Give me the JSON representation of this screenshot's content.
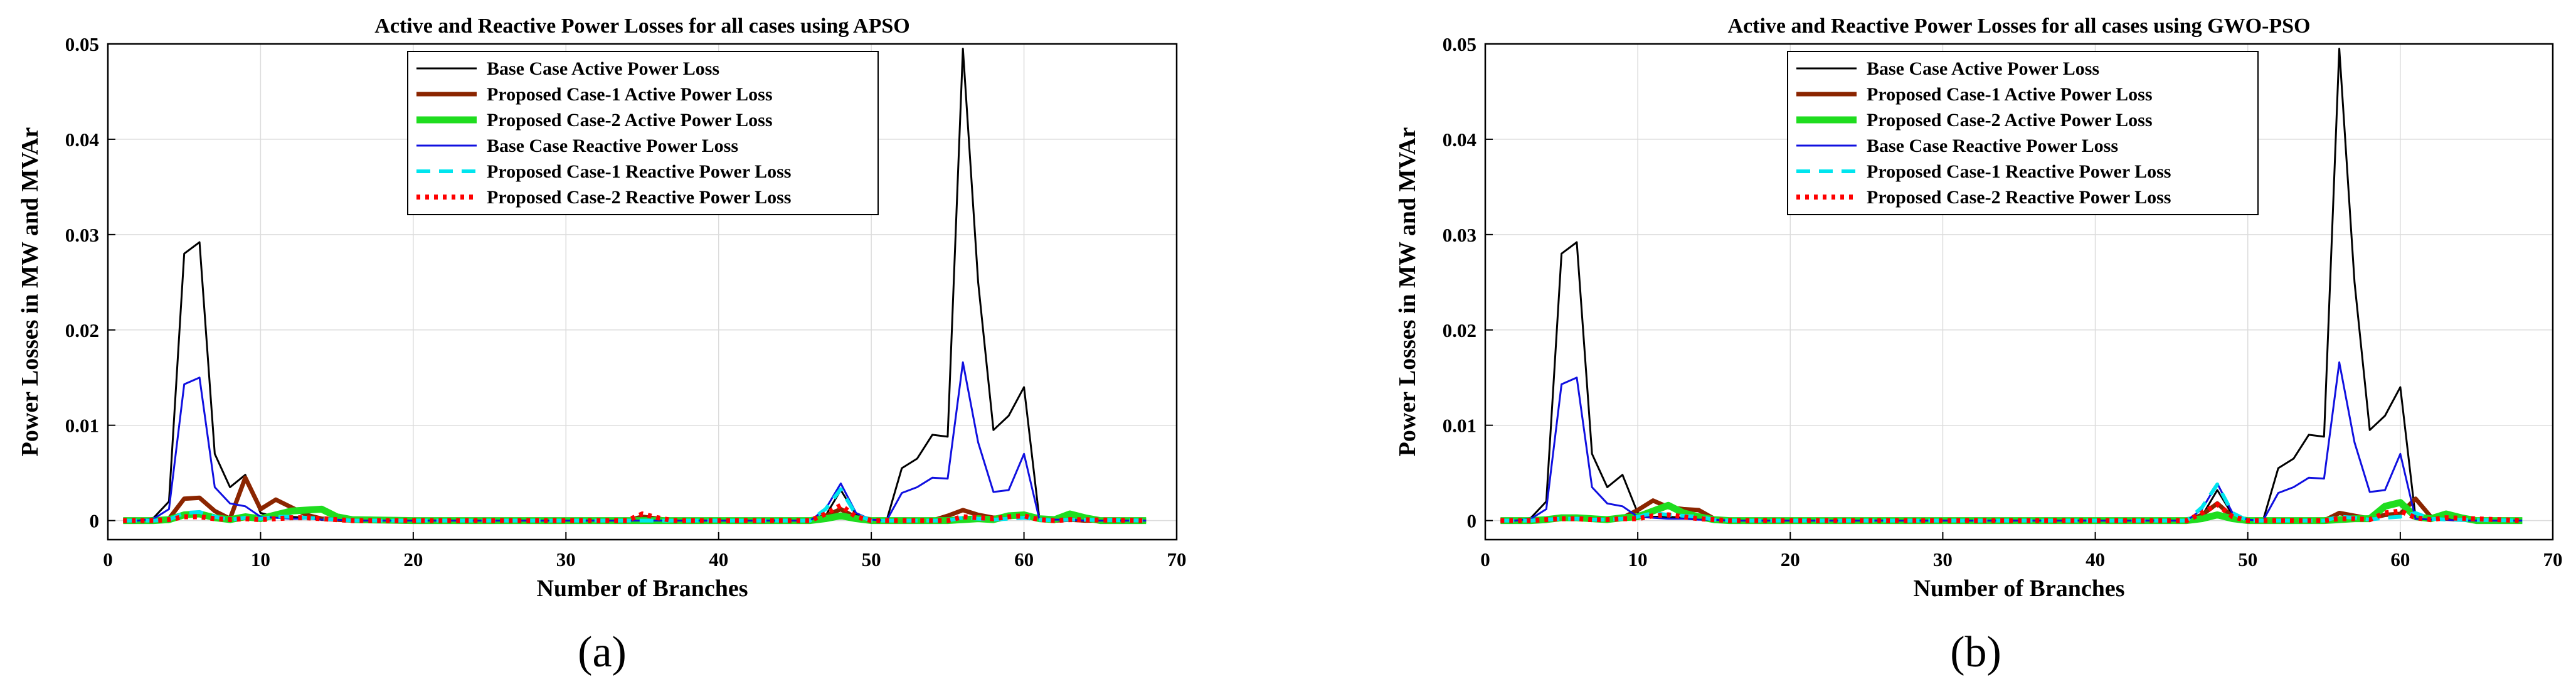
{
  "chart_data": [
    {
      "type": "line",
      "panel_label": "(a)",
      "title": "Active and Reactive Power Losses for all cases using APSO",
      "xlabel": "Number of Branches",
      "ylabel": "Power Losses in MW and MVAr",
      "xlim": [
        0,
        70
      ],
      "ylim": [
        -0.002,
        0.05
      ],
      "xticks": [
        "0",
        "10",
        "20",
        "30",
        "40",
        "50",
        "60",
        "70"
      ],
      "yticks": [
        "0",
        "0.01",
        "0.02",
        "0.03",
        "0.04",
        "0.05"
      ],
      "grid": true,
      "legend_position": "top-center",
      "series": [
        {
          "name": "Base Case Active Power Loss",
          "color": "#000000",
          "style": "solid",
          "x": [
            1,
            2,
            3,
            4,
            5,
            6,
            7,
            8,
            9,
            10,
            11,
            12,
            13,
            14,
            15,
            16,
            17,
            20,
            30,
            40,
            45,
            46,
            47,
            48,
            49,
            50,
            51,
            52,
            53,
            54,
            55,
            56,
            57,
            58,
            59,
            60,
            61,
            62,
            63,
            64,
            65,
            66,
            67,
            68
          ],
          "y": [
            0,
            0,
            0.0003,
            0.002,
            0.028,
            0.0292,
            0.007,
            0.0035,
            0.0048,
            0.0008,
            0.0004,
            0.0004,
            0.0003,
            0.0002,
            0.0001,
            0.0001,
            0,
            0,
            0,
            0,
            0,
            0,
            0.0005,
            0.0032,
            0.0006,
            0.0001,
            0,
            0.0055,
            0.0065,
            0.009,
            0.0088,
            0.0495,
            0.025,
            0.0095,
            0.011,
            0.014,
            0.0003,
            0.0002,
            0.0001,
            0.0001,
            0,
            0,
            0,
            0
          ]
        },
        {
          "name": "Proposed Case-1 Active Power Loss",
          "color": "#8b2500",
          "style": "solid",
          "x": [
            1,
            2,
            3,
            4,
            5,
            6,
            7,
            8,
            9,
            10,
            11,
            12,
            13,
            14,
            15,
            16,
            20,
            30,
            34,
            35,
            36,
            37,
            40,
            46,
            47,
            48,
            49,
            50,
            54,
            55,
            56,
            57,
            58,
            59,
            60,
            61,
            62,
            63,
            64,
            68
          ],
          "y": [
            0,
            0,
            0,
            0.0002,
            0.0023,
            0.0024,
            0.001,
            0.0002,
            0.0045,
            0.0012,
            0.0022,
            0.0014,
            0.0006,
            0.0002,
            0.0001,
            0,
            0,
            0,
            0,
            0.0004,
            0.0002,
            0,
            0,
            0,
            0.0005,
            0.0012,
            0.0003,
            0,
            0,
            0.0005,
            0.0011,
            0.0006,
            0.0003,
            0.0004,
            0.0006,
            0.0002,
            0,
            0.0001,
            0,
            0
          ]
        },
        {
          "name": "Proposed Case-2 Active Power Loss",
          "color": "#1fdd1f",
          "style": "solid",
          "x": [
            1,
            2,
            3,
            4,
            5,
            6,
            7,
            8,
            9,
            10,
            11,
            12,
            13,
            14,
            15,
            16,
            20,
            30,
            40,
            46,
            47,
            48,
            49,
            50,
            55,
            56,
            57,
            58,
            59,
            60,
            61,
            62,
            63,
            64,
            65,
            68
          ],
          "y": [
            0,
            0,
            0,
            0.0001,
            0.0006,
            0.0007,
            0.0003,
            0.0001,
            0.0004,
            0.0002,
            0.0006,
            0.001,
            0.0011,
            0.0012,
            0.0004,
            0.0001,
            0,
            0,
            0,
            0,
            0.0002,
            0.0005,
            0.0002,
            0,
            0,
            0.0001,
            0.0002,
            0.0001,
            0.0005,
            0.0006,
            0.0002,
            0.0001,
            0.0007,
            0.0003,
            0,
            0
          ]
        },
        {
          "name": "Base Case Reactive Power Loss",
          "color": "#1010e0",
          "style": "solid",
          "x": [
            1,
            2,
            3,
            4,
            5,
            6,
            7,
            8,
            9,
            10,
            11,
            12,
            13,
            14,
            15,
            16,
            20,
            30,
            40,
            45,
            46,
            47,
            48,
            49,
            50,
            51,
            52,
            53,
            54,
            55,
            56,
            57,
            58,
            59,
            60,
            61,
            62,
            63,
            64,
            65,
            68
          ],
          "y": [
            0,
            0,
            0.0002,
            0.0012,
            0.0143,
            0.015,
            0.0035,
            0.0018,
            0.0015,
            0.0004,
            0.0003,
            0.0002,
            0.0002,
            0.0001,
            0.0001,
            0,
            0,
            0,
            0,
            0,
            0,
            0.0012,
            0.0039,
            0.0008,
            0.0001,
            0,
            0.0029,
            0.0035,
            0.0045,
            0.0044,
            0.0166,
            0.0082,
            0.003,
            0.0032,
            0.007,
            0.0002,
            0.0001,
            0.0001,
            0,
            0,
            0
          ]
        },
        {
          "name": "Proposed Case-1 Reactive Power Loss",
          "color": "#00e5ee",
          "style": "dash",
          "x": [
            1,
            2,
            3,
            4,
            5,
            6,
            7,
            8,
            9,
            10,
            11,
            12,
            13,
            14,
            15,
            16,
            20,
            30,
            40,
            46,
            47,
            48,
            49,
            50,
            55,
            56,
            57,
            58,
            59,
            60,
            61,
            62,
            63,
            68
          ],
          "y": [
            0,
            0,
            0,
            0.0001,
            0.0008,
            0.0009,
            0.0004,
            0.0001,
            0.0003,
            0.0002,
            0.0004,
            0.0004,
            0.0003,
            0.0002,
            0.0001,
            0,
            0,
            0,
            0,
            0,
            0.0012,
            0.0033,
            0.0006,
            0,
            0,
            0.0003,
            0.0002,
            0.0001,
            0.0002,
            0.0003,
            0.0001,
            0,
            0.0001,
            0
          ]
        },
        {
          "name": "Proposed Case-2 Reactive Power Loss",
          "color": "#ff0000",
          "style": "dot",
          "x": [
            1,
            2,
            3,
            4,
            5,
            6,
            7,
            8,
            9,
            10,
            11,
            12,
            13,
            14,
            15,
            16,
            20,
            30,
            34,
            35,
            36,
            37,
            40,
            46,
            47,
            48,
            49,
            50,
            55,
            56,
            57,
            58,
            59,
            60,
            61,
            62,
            63,
            68
          ],
          "y": [
            0,
            0,
            0,
            0.0001,
            0.0004,
            0.0004,
            0.0002,
            0.0001,
            0.0002,
            0.0001,
            0.0002,
            0.0003,
            0.0003,
            0.0002,
            0.0001,
            0,
            0,
            0,
            0,
            0.0007,
            0.0003,
            0,
            0,
            0,
            0.0007,
            0.0016,
            0.0004,
            0,
            0,
            0.0004,
            0.0003,
            0.0002,
            0.0004,
            0.0005,
            0.0001,
            0,
            0.0001,
            0
          ]
        }
      ]
    },
    {
      "type": "line",
      "panel_label": "(b)",
      "title": "Active and Reactive Power Losses for all cases using GWO-PSO",
      "xlabel": "Number of Branches",
      "ylabel": "Power Losses in MW and MVAr",
      "xlim": [
        0,
        70
      ],
      "ylim": [
        -0.002,
        0.05
      ],
      "xticks": [
        "0",
        "10",
        "20",
        "30",
        "40",
        "50",
        "60",
        "70"
      ],
      "yticks": [
        "0",
        "0.01",
        "0.02",
        "0.03",
        "0.04",
        "0.05"
      ],
      "grid": true,
      "legend_position": "top-center",
      "series": [
        {
          "name": "Base Case Active Power Loss",
          "color": "#000000",
          "style": "solid",
          "x": [
            1,
            2,
            3,
            4,
            5,
            6,
            7,
            8,
            9,
            10,
            11,
            12,
            13,
            14,
            15,
            16,
            17,
            20,
            30,
            40,
            45,
            46,
            47,
            48,
            49,
            50,
            51,
            52,
            53,
            54,
            55,
            56,
            57,
            58,
            59,
            60,
            61,
            62,
            63,
            64,
            65,
            66,
            67,
            68
          ],
          "y": [
            0,
            0,
            0.0003,
            0.002,
            0.028,
            0.0292,
            0.007,
            0.0035,
            0.0048,
            0.0008,
            0.0004,
            0.0004,
            0.0003,
            0.0002,
            0.0001,
            0.0001,
            0,
            0,
            0,
            0,
            0,
            0,
            0.0005,
            0.0032,
            0.0006,
            0.0001,
            0,
            0.0055,
            0.0065,
            0.009,
            0.0088,
            0.0495,
            0.025,
            0.0095,
            0.011,
            0.014,
            0.0003,
            0.0002,
            0.0001,
            0.0001,
            0,
            0,
            0,
            0
          ]
        },
        {
          "name": "Proposed Case-1 Active Power Loss",
          "color": "#8b2500",
          "style": "solid",
          "x": [
            1,
            2,
            3,
            4,
            5,
            6,
            7,
            8,
            9,
            10,
            11,
            12,
            13,
            14,
            15,
            16,
            20,
            30,
            40,
            46,
            47,
            48,
            49,
            50,
            55,
            56,
            57,
            58,
            59,
            60,
            61,
            62,
            63,
            64,
            68
          ],
          "y": [
            0,
            0,
            0,
            0.0001,
            0.0003,
            0.0004,
            0.0002,
            0.0002,
            0.0003,
            0.0011,
            0.0021,
            0.0014,
            0.0012,
            0.0011,
            0.0002,
            0,
            0,
            0,
            0,
            0,
            0.0006,
            0.0018,
            0.0004,
            0,
            0,
            0.0008,
            0.0005,
            0.0002,
            0.0006,
            0.0007,
            0.0023,
            0.0004,
            0.0002,
            0.0001,
            0
          ]
        },
        {
          "name": "Proposed Case-2 Active Power Loss",
          "color": "#1fdd1f",
          "style": "solid",
          "x": [
            1,
            2,
            3,
            4,
            5,
            6,
            7,
            8,
            9,
            10,
            11,
            12,
            13,
            14,
            15,
            16,
            20,
            30,
            40,
            46,
            47,
            48,
            49,
            50,
            55,
            56,
            57,
            58,
            59,
            60,
            61,
            62,
            63,
            64,
            65,
            68
          ],
          "y": [
            0,
            0,
            0,
            0.0001,
            0.0003,
            0.0003,
            0.0002,
            0.0001,
            0.0003,
            0.0004,
            0.001,
            0.0016,
            0.0008,
            0.0004,
            0.0001,
            0,
            0,
            0,
            0,
            0,
            0.0002,
            0.0006,
            0.0002,
            0,
            0,
            0.0001,
            0.0002,
            0.0002,
            0.0015,
            0.0019,
            0.0004,
            0.0002,
            0.0007,
            0.0003,
            0,
            0
          ]
        },
        {
          "name": "Base Case Reactive Power Loss",
          "color": "#1010e0",
          "style": "solid",
          "x": [
            1,
            2,
            3,
            4,
            5,
            6,
            7,
            8,
            9,
            10,
            11,
            12,
            13,
            14,
            15,
            16,
            20,
            30,
            40,
            45,
            46,
            47,
            48,
            49,
            50,
            51,
            52,
            53,
            54,
            55,
            56,
            57,
            58,
            59,
            60,
            61,
            62,
            63,
            64,
            65,
            68
          ],
          "y": [
            0,
            0,
            0.0002,
            0.0012,
            0.0143,
            0.015,
            0.0035,
            0.0018,
            0.0015,
            0.0004,
            0.0003,
            0.0002,
            0.0002,
            0.0001,
            0.0001,
            0,
            0,
            0,
            0,
            0,
            0,
            0.0012,
            0.0039,
            0.0008,
            0.0001,
            0,
            0.0029,
            0.0035,
            0.0045,
            0.0044,
            0.0166,
            0.0082,
            0.003,
            0.0032,
            0.007,
            0.0002,
            0.0001,
            0.0001,
            0,
            0,
            0
          ]
        },
        {
          "name": "Proposed Case-1 Reactive Power Loss",
          "color": "#00e5ee",
          "style": "dash",
          "x": [
            1,
            2,
            3,
            4,
            5,
            6,
            7,
            8,
            9,
            10,
            11,
            12,
            13,
            14,
            15,
            16,
            20,
            30,
            40,
            46,
            47,
            48,
            49,
            50,
            55,
            56,
            57,
            58,
            59,
            60,
            61,
            62,
            63,
            68
          ],
          "y": [
            0,
            0,
            0,
            0.0001,
            0.0002,
            0.0002,
            0.0001,
            0.0001,
            0.0002,
            0.0004,
            0.0008,
            0.0006,
            0.0005,
            0.0004,
            0.0001,
            0,
            0,
            0,
            0,
            0,
            0.0014,
            0.0038,
            0.0008,
            0,
            0,
            0.0004,
            0.0003,
            0.0001,
            0.0003,
            0.0004,
            0.0008,
            0.0002,
            0.0001,
            0
          ]
        },
        {
          "name": "Proposed Case-2 Reactive Power Loss",
          "color": "#ff0000",
          "style": "dot",
          "x": [
            1,
            2,
            3,
            4,
            5,
            6,
            7,
            8,
            9,
            10,
            11,
            12,
            13,
            14,
            15,
            16,
            20,
            30,
            40,
            46,
            47,
            48,
            49,
            50,
            55,
            56,
            57,
            58,
            59,
            60,
            61,
            62,
            63,
            68
          ],
          "y": [
            0,
            0,
            0,
            0.0001,
            0.0002,
            0.0002,
            0.0001,
            0.0001,
            0.0002,
            0.0002,
            0.0005,
            0.0006,
            0.0004,
            0.0002,
            0.0001,
            0,
            0,
            0,
            0,
            0,
            0.0008,
            0.0017,
            0.0004,
            0,
            0,
            0.0002,
            0.0002,
            0.0001,
            0.0008,
            0.001,
            0.0003,
            0.0001,
            0.0003,
            0
          ]
        }
      ]
    }
  ]
}
